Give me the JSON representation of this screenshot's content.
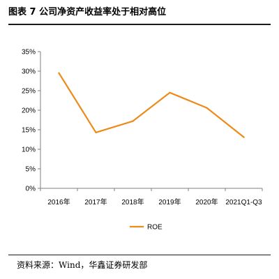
{
  "header": {
    "title": "图表 7 公司净资产收益率处于相对高位"
  },
  "footer": {
    "source": "资料来源：Wind，华鑫证券研发部"
  },
  "colors": {
    "line": "#ED8B1A",
    "axis": "#7f7f7f",
    "text": "#000000"
  },
  "chart_data": {
    "type": "line",
    "title": "",
    "xlabel": "",
    "ylabel": "",
    "categories": [
      "2016年",
      "2017年",
      "2018年",
      "2019年",
      "2020年",
      "2021Q1-Q3"
    ],
    "yticks": [
      "0%",
      "5%",
      "10%",
      "15%",
      "20%",
      "25%",
      "30%",
      "35%"
    ],
    "ylim": [
      0,
      35
    ],
    "grid": false,
    "legend": "bottom-center",
    "series": [
      {
        "name": "ROE",
        "values": [
          29.5,
          14.3,
          17.2,
          24.5,
          20.6,
          13.1
        ]
      }
    ]
  }
}
